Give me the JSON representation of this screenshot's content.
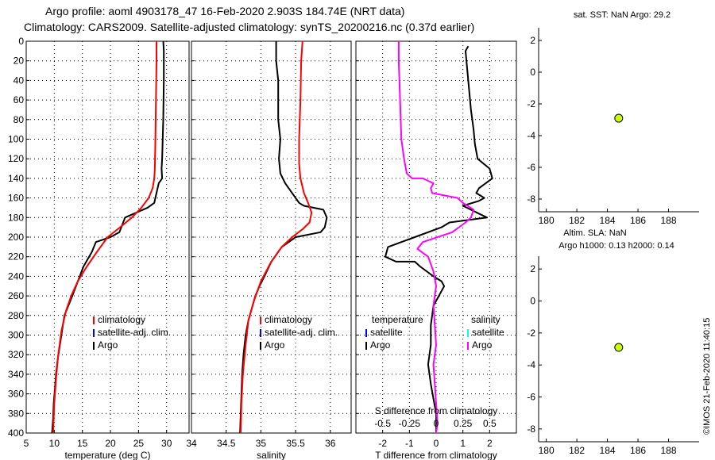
{
  "header": {
    "title_line1": "Argo profile: aoml 4903178_47 16-Feb-2020 2.903S 184.74E (NRT data)",
    "title_line2": "Climatology: CARS2009. Satellite-adjusted climatology: synTS_20200216.nc (0.37d earlier)"
  },
  "footer": {
    "imos_stamp": "©IMOS 21-Feb-2020 11:40:15"
  },
  "colors": {
    "argo": "#000000",
    "climatology": "#ff0000",
    "satellite": "#0000ff",
    "salinity_diff": "#ff00ff",
    "salinity_satellite": "#00ffff",
    "marker": "#ccff00"
  },
  "chart_data": [
    {
      "id": "temperature",
      "type": "line",
      "xlabel": "temperature (deg C)",
      "xlim": [
        5,
        34
      ],
      "xticks": [
        5,
        10,
        15,
        20,
        25,
        30
      ],
      "ylim": [
        0,
        400
      ],
      "yticks": [
        0,
        20,
        40,
        60,
        80,
        100,
        120,
        140,
        160,
        180,
        200,
        220,
        240,
        260,
        280,
        300,
        320,
        340,
        360,
        380,
        400
      ],
      "grid": true,
      "legend": [
        {
          "label": "climatology",
          "color": "#ff0000"
        },
        {
          "label": "satellite-adj. clim.",
          "color": "#0000ff"
        },
        {
          "label": "Argo",
          "color": "#000000"
        }
      ],
      "series": [
        {
          "name": "Argo",
          "color": "#000000",
          "x": [
            29.4,
            29.5,
            29.5,
            29.4,
            29.3,
            29.2,
            29.1,
            29.2,
            28.6,
            28.2,
            27.8,
            26.6,
            24.6,
            22.6,
            21.6,
            20.0,
            17.4,
            16.7,
            15.2,
            14.2,
            13.2,
            12.5,
            11.8,
            11.4,
            11.0,
            10.6,
            10.3,
            10.1,
            9.9,
            9.8,
            9.6
          ],
          "depth": [
            0,
            10,
            40,
            80,
            100,
            120,
            130,
            140,
            145,
            155,
            165,
            170,
            175,
            180,
            195,
            200,
            205,
            215,
            230,
            245,
            260,
            270,
            280,
            295,
            310,
            325,
            340,
            355,
            370,
            385,
            400
          ]
        },
        {
          "name": "climatology",
          "color": "#ff0000",
          "x": [
            28.2,
            28.2,
            28.1,
            28.0,
            27.9,
            27.8,
            27.5,
            26.8,
            25.5,
            23.8,
            21.7,
            19.5,
            17.6,
            15.8,
            14.2,
            13.0,
            12.1,
            11.3,
            10.7,
            10.3,
            10.0,
            9.8
          ],
          "depth": [
            0,
            20,
            60,
            100,
            130,
            140,
            150,
            160,
            170,
            180,
            190,
            200,
            215,
            230,
            245,
            260,
            275,
            295,
            320,
            345,
            370,
            400
          ]
        }
      ]
    },
    {
      "id": "salinity",
      "type": "line",
      "xlabel": "salinity",
      "xlim": [
        34,
        36.3
      ],
      "xticks": [
        34,
        34.5,
        35,
        35.5,
        36
      ],
      "xtick_labels": [
        "34",
        "34.5",
        "35",
        "35.5",
        "36"
      ],
      "ylim": [
        0,
        400
      ],
      "grid": true,
      "legend": [
        {
          "label": "climatology",
          "color": "#ff0000"
        },
        {
          "label": "satellite-adj. clim.",
          "color": "#0000ff"
        },
        {
          "label": "Argo",
          "color": "#000000"
        }
      ],
      "series": [
        {
          "name": "Argo",
          "color": "#000000",
          "x": [
            35.22,
            35.22,
            35.25,
            35.25,
            35.28,
            35.26,
            35.28,
            35.35,
            35.45,
            35.55,
            35.62,
            35.9,
            35.95,
            35.92,
            35.86,
            35.5,
            35.3,
            35.15,
            35.05,
            34.98,
            34.92,
            34.88,
            34.82,
            34.78,
            34.75,
            34.73,
            34.72,
            34.71,
            34.7
          ],
          "depth": [
            0,
            20,
            40,
            80,
            100,
            120,
            135,
            145,
            155,
            165,
            168,
            172,
            180,
            190,
            195,
            200,
            210,
            225,
            240,
            250,
            260,
            270,
            285,
            300,
            320,
            340,
            360,
            380,
            400
          ]
        },
        {
          "name": "climatology",
          "color": "#ff0000",
          "x": [
            35.6,
            35.58,
            35.57,
            35.55,
            35.55,
            35.57,
            35.62,
            35.68,
            35.73,
            35.7,
            35.6,
            35.45,
            35.3,
            35.15,
            35.0,
            34.9,
            34.82,
            34.78,
            34.74,
            34.72,
            34.71
          ],
          "depth": [
            0,
            20,
            60,
            100,
            125,
            140,
            155,
            165,
            175,
            185,
            192,
            200,
            210,
            225,
            245,
            265,
            285,
            310,
            340,
            370,
            400
          ]
        }
      ]
    },
    {
      "id": "difference",
      "type": "line",
      "xlabel": "T difference from climatology",
      "xlim": [
        -3,
        3
      ],
      "xticks": [
        -2,
        -1,
        0,
        1,
        2
      ],
      "top_xlabel": "S difference from climatology",
      "top_xticks": [
        -0.5,
        -0.25,
        0,
        0.25,
        0.5
      ],
      "top_xtick_labels": [
        "-0.5",
        "-0.25",
        "0",
        "0.25",
        "0.5"
      ],
      "ylim": [
        0,
        400
      ],
      "grid": true,
      "legend_temperature_title": "temperature",
      "legend_salinity_title": "salinity",
      "legend": [
        {
          "label": "satellite",
          "color": "#0000ff",
          "group": "temperature"
        },
        {
          "label": "Argo",
          "color": "#000000",
          "group": "temperature"
        },
        {
          "label": "satellite",
          "color": "#00ffff",
          "group": "salinity"
        },
        {
          "label": "Argo",
          "color": "#ff00ff",
          "group": "salinity"
        }
      ],
      "series": [
        {
          "name": "T difference",
          "color": "#000000",
          "x": [
            1.2,
            1.1,
            1.2,
            1.3,
            1.4,
            1.45,
            1.55,
            2.0,
            2.1,
            1.6,
            1.5,
            1.8,
            1.6,
            1.0,
            1.9,
            0.5,
            0.2,
            -0.8,
            -1.3,
            -1.8,
            -1.9,
            -1.5,
            -0.8,
            -0.6,
            -0.1,
            0.2,
            0.3,
            0.1,
            -0.1,
            -0.2,
            -0.2,
            -0.3,
            -0.2,
            -0.1,
            0.0,
            0.0,
            0.0
          ],
          "depth": [
            5,
            10,
            40,
            70,
            90,
            105,
            120,
            130,
            140,
            150,
            155,
            160,
            163,
            168,
            180,
            185,
            190,
            200,
            205,
            210,
            220,
            225,
            225,
            230,
            240,
            245,
            250,
            260,
            270,
            290,
            310,
            330,
            350,
            365,
            380,
            395,
            400
          ]
        },
        {
          "name": "S difference",
          "color": "#ff00ff",
          "x": [
            -1.4,
            -1.4,
            -1.35,
            -1.3,
            -1.2,
            -1.1,
            -0.9,
            -0.5,
            -0.1,
            -0.2,
            -0.15,
            0.8,
            1.0,
            1.4,
            1.3,
            1.1,
            0.6,
            -0.5,
            -0.7,
            -0.3,
            -0.1,
            0.0,
            -0.1,
            -0.05,
            0.0,
            -0.1,
            -0.05,
            0.0,
            0.05,
            0.0
          ],
          "depth": [
            0,
            20,
            60,
            100,
            120,
            135,
            140,
            140,
            145,
            150,
            155,
            160,
            165,
            172,
            180,
            185,
            195,
            205,
            212,
            220,
            235,
            250,
            270,
            290,
            310,
            330,
            350,
            370,
            390,
            400
          ]
        }
      ]
    },
    {
      "id": "sst",
      "type": "scatter",
      "title": "sat. SST: NaN Argo: 29.2",
      "xlim": [
        179.5,
        190
      ],
      "xticks": [
        180,
        182,
        184,
        186,
        188
      ],
      "ylim": [
        -8.8,
        2.8
      ],
      "yticks": [
        2,
        0,
        -2,
        -4,
        -6,
        -8
      ],
      "points": [
        {
          "x": 184.74,
          "y": -2.903,
          "color": "#ccff00"
        }
      ]
    },
    {
      "id": "sla",
      "type": "scatter",
      "title": "Altim. SLA: NaN",
      "subtitle": "Argo h1000: 0.13 h2000: 0.14",
      "xlim": [
        179.5,
        190
      ],
      "xticks": [
        180,
        182,
        184,
        186,
        188
      ],
      "ylim": [
        -8.8,
        2.8
      ],
      "yticks": [
        2,
        0,
        -2,
        -4,
        -6,
        -8
      ],
      "points": [
        {
          "x": 184.74,
          "y": -2.903,
          "color": "#ccff00"
        }
      ]
    }
  ]
}
